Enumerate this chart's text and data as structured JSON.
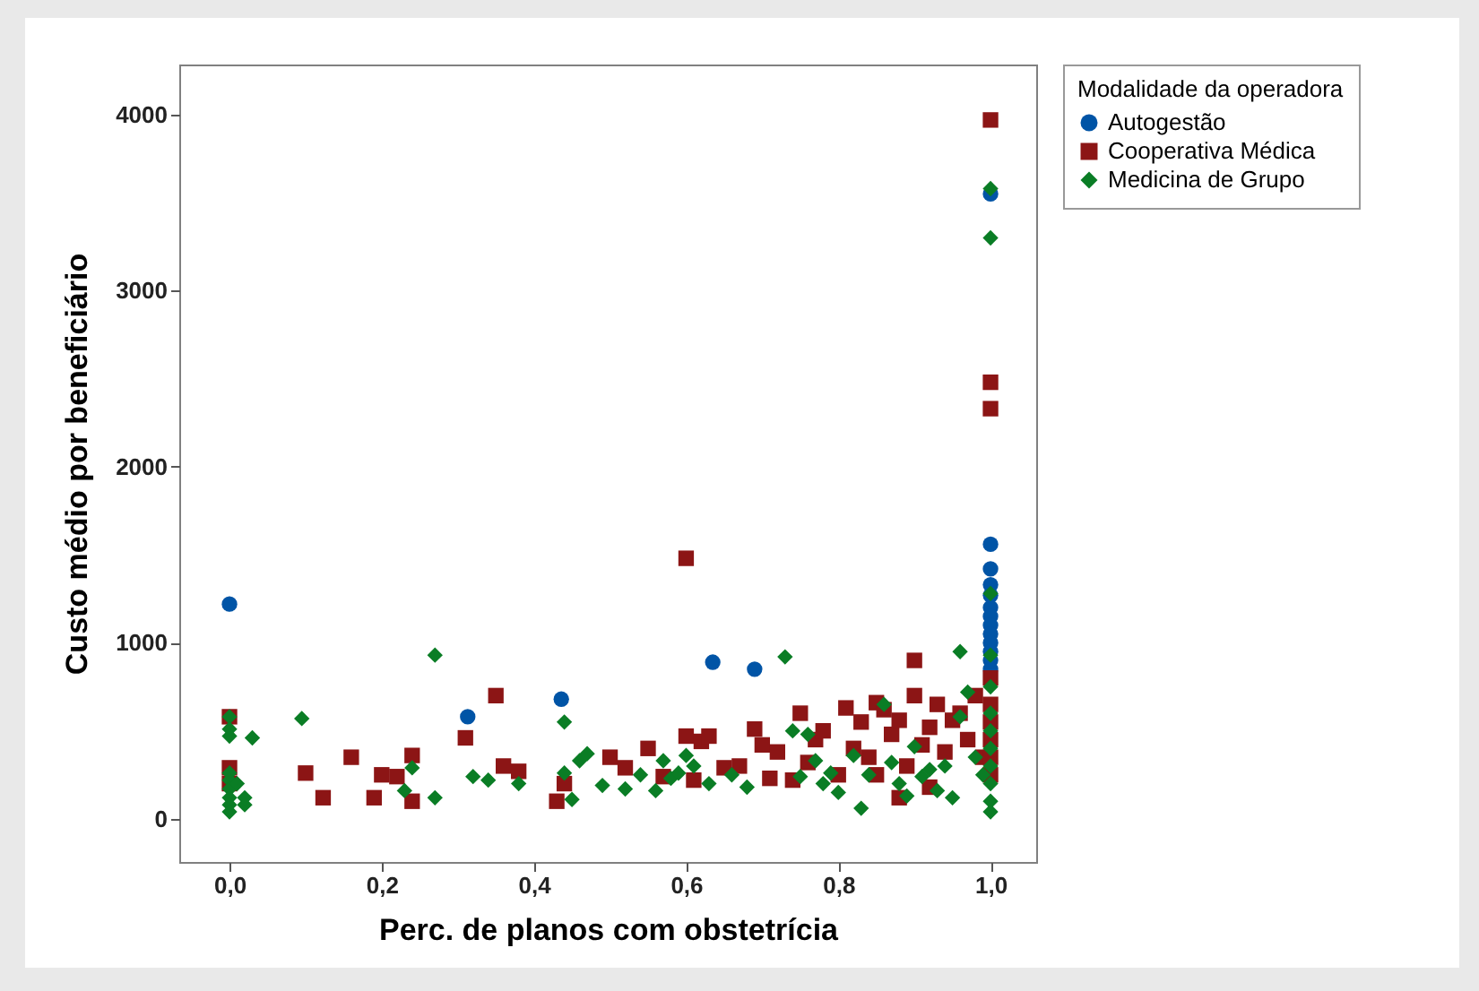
{
  "chart_data": {
    "type": "scatter",
    "xlabel": "Perc. de planos com obstetrícia",
    "ylabel": "Custo médio por beneficiário",
    "legend_title": "Modalidade da operadora",
    "legend": "top right",
    "grid": false,
    "xlim": [
      -0.066,
      1.06
    ],
    "ylim": [
      -245,
      4285
    ],
    "xticks": [
      {
        "value": 0,
        "label": "0,0"
      },
      {
        "value": 0.2,
        "label": "0,2"
      },
      {
        "value": 0.4,
        "label": "0,4"
      },
      {
        "value": 0.6,
        "label": "0,6"
      },
      {
        "value": 0.8,
        "label": "0,8"
      },
      {
        "value": 1,
        "label": "1,0"
      }
    ],
    "yticks": [
      0,
      1000,
      2000,
      3000,
      4000
    ],
    "series": [
      {
        "name": "Autogestão",
        "color": "#0054a6",
        "marker": "circle",
        "x": [
          0,
          0.313,
          0.436,
          0.635,
          0.69,
          1,
          1,
          1,
          1,
          1,
          1,
          1,
          1,
          1,
          1,
          1,
          1,
          1
        ],
        "values": [
          1220,
          580,
          680,
          890,
          850,
          3550,
          1560,
          1420,
          1330,
          1270,
          1200,
          1150,
          1100,
          1050,
          1000,
          950,
          900,
          850
        ]
      },
      {
        "name": "Cooperativa Médica",
        "color": "#8c1515",
        "marker": "square",
        "x": [
          0,
          0,
          0,
          0.1,
          0.123,
          0.16,
          0.19,
          0.2,
          0.22,
          0.24,
          0.24,
          0.31,
          0.35,
          0.36,
          0.38,
          0.43,
          0.44,
          0.5,
          0.52,
          0.55,
          0.57,
          0.6,
          0.6,
          0.61,
          0.62,
          0.63,
          0.65,
          0.67,
          0.69,
          0.7,
          0.71,
          0.72,
          0.74,
          0.75,
          0.76,
          0.77,
          0.78,
          0.8,
          0.81,
          0.82,
          0.83,
          0.84,
          0.85,
          0.86,
          0.87,
          0.88,
          0.89,
          0.9,
          0.9,
          0.91,
          0.92,
          0.93,
          0.94,
          0.95,
          0.96,
          0.97,
          0.98,
          0.99,
          1,
          1,
          1,
          1,
          1,
          1,
          1,
          1,
          1,
          0.92,
          0.85,
          0.88
        ],
        "values": [
          580,
          290,
          200,
          260,
          120,
          350,
          120,
          250,
          240,
          360,
          100,
          460,
          700,
          300,
          270,
          100,
          200,
          350,
          290,
          400,
          240,
          1480,
          470,
          220,
          440,
          470,
          290,
          300,
          510,
          420,
          230,
          380,
          220,
          600,
          320,
          450,
          500,
          250,
          630,
          400,
          550,
          350,
          660,
          620,
          480,
          560,
          300,
          900,
          700,
          420,
          520,
          650,
          380,
          560,
          600,
          450,
          700,
          350,
          3970,
          2480,
          2330,
          800,
          650,
          550,
          450,
          350,
          250,
          180,
          250,
          120
        ]
      },
      {
        "name": "Medicina de Grupo",
        "color": "#0a7d25",
        "marker": "diamond",
        "x": [
          0,
          0,
          0,
          0,
          0,
          0,
          0,
          0,
          0,
          0.01,
          0.02,
          0.03,
          0.02,
          0.095,
          0.23,
          0.24,
          0.27,
          0.27,
          0.32,
          0.34,
          0.38,
          0.44,
          0.44,
          0.45,
          0.46,
          0.47,
          0.49,
          0.52,
          0.54,
          0.56,
          0.57,
          0.58,
          0.59,
          0.6,
          0.61,
          0.63,
          0.66,
          0.68,
          0.73,
          0.74,
          0.75,
          0.76,
          0.77,
          0.78,
          0.79,
          0.8,
          0.82,
          0.83,
          0.84,
          0.86,
          0.87,
          0.88,
          0.89,
          0.9,
          0.91,
          0.92,
          0.93,
          0.94,
          0.95,
          0.96,
          0.96,
          0.97,
          0.98,
          0.99,
          1,
          1,
          1,
          1,
          1,
          1,
          1,
          1,
          1,
          1,
          1,
          1
        ],
        "values": [
          580,
          510,
          470,
          260,
          220,
          170,
          120,
          80,
          40,
          200,
          80,
          460,
          120,
          570,
          160,
          290,
          930,
          120,
          240,
          220,
          200,
          550,
          260,
          110,
          330,
          370,
          190,
          170,
          250,
          160,
          330,
          230,
          260,
          360,
          300,
          200,
          250,
          180,
          920,
          500,
          240,
          480,
          330,
          200,
          260,
          150,
          360,
          60,
          250,
          650,
          320,
          200,
          130,
          410,
          240,
          280,
          160,
          300,
          120,
          580,
          950,
          720,
          350,
          250,
          3580,
          3300,
          1280,
          930,
          750,
          600,
          500,
          400,
          300,
          200,
          100,
          40
        ]
      }
    ]
  }
}
